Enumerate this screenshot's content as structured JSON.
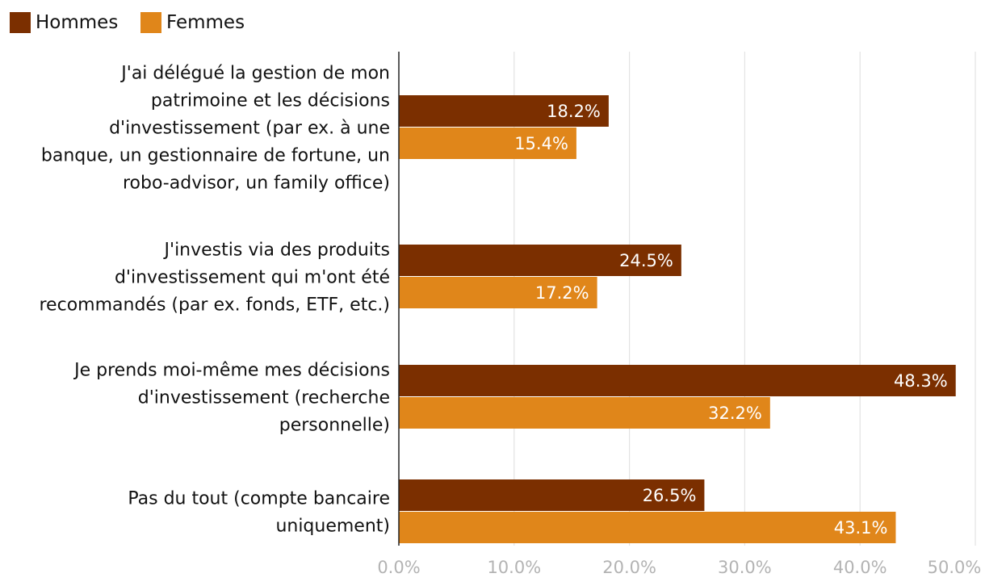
{
  "chart_data": {
    "type": "bar",
    "orientation": "horizontal",
    "categories": [
      "J'ai délégué la gestion de mon patrimoine et les décisions d'investissement (par ex. à une banque, un gestionnaire de fortune, un robo-advisor, un family office)",
      "J'investis via des produits d'investissement qui m'ont été recommandés (par ex. fonds, ETF, etc.)",
      "Je prends moi-même mes décisions d'investissement (recherche personnelle)",
      "Pas du tout (compte bancaire uniquement)"
    ],
    "category_lines": [
      [
        "J'ai délégué la gestion de mon",
        "patrimoine et les décisions",
        "d'investissement (par ex. à une",
        "banque, un gestionnaire de fortune, un",
        "robo-advisor, un family office)"
      ],
      [
        "J'investis via des produits",
        "d'investissement qui m'ont été",
        "recommandés (par ex. fonds, ETF, etc.)"
      ],
      [
        "Je prends moi-même mes décisions",
        "d'investissement (recherche",
        "personnelle)"
      ],
      [
        "Pas du tout (compte bancaire",
        "uniquement)"
      ]
    ],
    "series": [
      {
        "name": "Hommes",
        "color": "#7b2f00",
        "values": [
          18.2,
          24.5,
          48.3,
          26.5
        ],
        "labels": [
          "18.2%",
          "24.5%",
          "48.3%",
          "26.5%"
        ]
      },
      {
        "name": "Femmes",
        "color": "#e0861a",
        "values": [
          15.4,
          17.2,
          32.2,
          43.1
        ],
        "labels": [
          "15.4%",
          "17.2%",
          "32.2%",
          "43.1%"
        ]
      }
    ],
    "xlim": [
      0,
      50
    ],
    "xticks": [
      0,
      10,
      20,
      30,
      40,
      50
    ],
    "xtick_labels": [
      "0.0%",
      "10.0%",
      "20.0%",
      "30.0%",
      "40.0%",
      "50.0%"
    ],
    "grid": true,
    "legend_position": "top-left",
    "title": "",
    "xlabel": "",
    "ylabel": ""
  }
}
